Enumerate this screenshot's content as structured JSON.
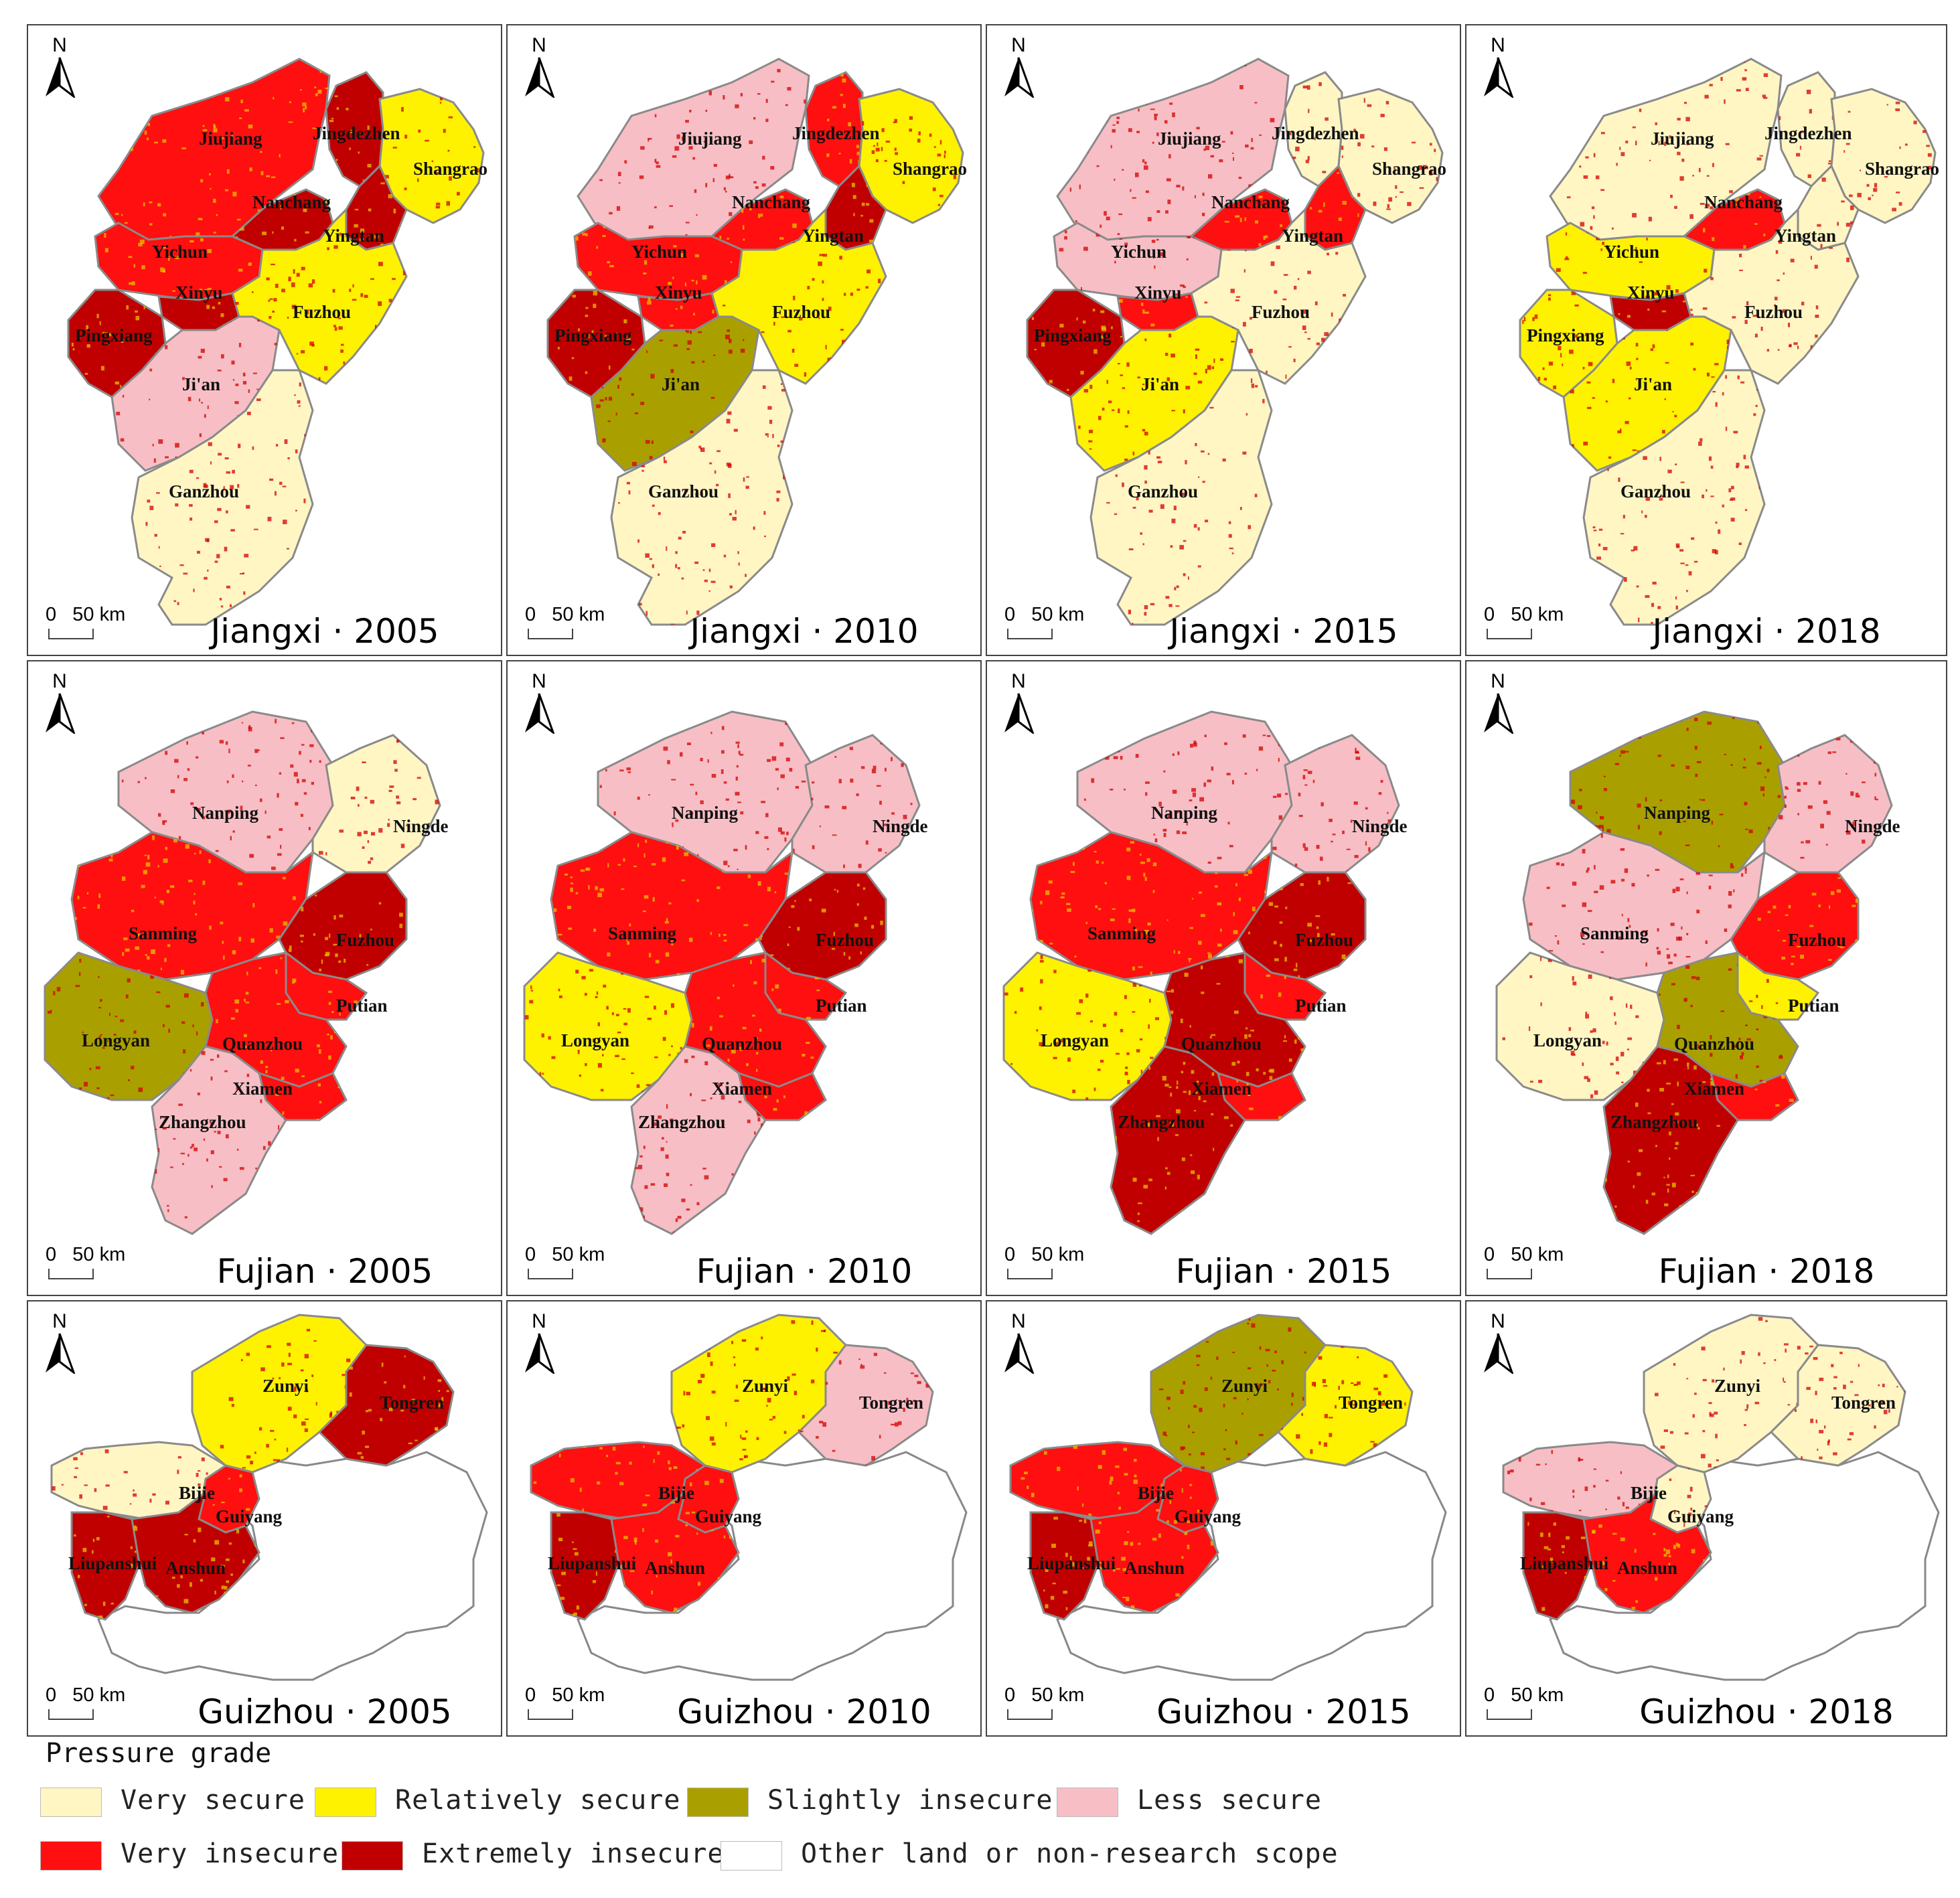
{
  "colors": {
    "very_secure": "#FFF6C4",
    "relatively_secure": "#FFF200",
    "slightly_insecure": "#A9A000",
    "less_secure": "#F7BFC5",
    "very_insecure": "#FF0F0F",
    "extremely_insecure": "#C00000",
    "other": "#FFFFFF"
  },
  "legend": {
    "title": "Pressure grade",
    "items": [
      {
        "key": "very_secure",
        "label": "Very secure"
      },
      {
        "key": "relatively_secure",
        "label": "Relatively secure"
      },
      {
        "key": "slightly_insecure",
        "label": "Slightly insecure"
      },
      {
        "key": "less_secure",
        "label": "Less secure"
      },
      {
        "key": "very_insecure",
        "label": "Very insecure"
      },
      {
        "key": "extremely_insecure",
        "label": "Extremely insecure"
      },
      {
        "key": "other",
        "label": "Other land or non-research scope"
      }
    ]
  },
  "north_label": "N",
  "scale_label": {
    "zero": "0",
    "dist": "50 km"
  },
  "panels": [
    {
      "province": "Jiangxi",
      "year": "2005"
    },
    {
      "province": "Jiangxi",
      "year": "2010"
    },
    {
      "province": "Jiangxi",
      "year": "2015"
    },
    {
      "province": "Jiangxi",
      "year": "2018"
    },
    {
      "province": "Fujian",
      "year": "2005"
    },
    {
      "province": "Fujian",
      "year": "2010"
    },
    {
      "province": "Fujian",
      "year": "2015"
    },
    {
      "province": "Fujian",
      "year": "2018"
    },
    {
      "province": "Guizhou",
      "year": "2005"
    },
    {
      "province": "Guizhou",
      "year": "2010"
    },
    {
      "province": "Guizhou",
      "year": "2015"
    },
    {
      "province": "Guizhou",
      "year": "2018"
    }
  ],
  "provinces": {
    "Jiangxi": {
      "cities": [
        "Jiujiang",
        "Jingdezhen",
        "Shangrao",
        "Nanchang",
        "Yingtan",
        "Yichun",
        "Xinyu",
        "Fuzhou",
        "Pingxiang",
        "Ji'an",
        "Ganzhou"
      ],
      "grades": {
        "2005": [
          "very_insecure",
          "extremely_insecure",
          "relatively_secure",
          "extremely_insecure",
          "extremely_insecure",
          "very_insecure",
          "extremely_insecure",
          "relatively_secure",
          "extremely_insecure",
          "less_secure",
          "very_secure"
        ],
        "2010": [
          "less_secure",
          "very_insecure",
          "relatively_secure",
          "very_insecure",
          "extremely_insecure",
          "very_insecure",
          "very_insecure",
          "relatively_secure",
          "extremely_insecure",
          "slightly_insecure",
          "very_secure"
        ],
        "2015": [
          "less_secure",
          "very_secure",
          "very_secure",
          "very_insecure",
          "very_insecure",
          "less_secure",
          "very_insecure",
          "very_secure",
          "extremely_insecure",
          "relatively_secure",
          "very_secure"
        ],
        "2018": [
          "very_secure",
          "very_secure",
          "very_secure",
          "very_insecure",
          "very_secure",
          "relatively_secure",
          "extremely_insecure",
          "very_secure",
          "relatively_secure",
          "relatively_secure",
          "very_secure"
        ]
      }
    },
    "Fujian": {
      "cities": [
        "Nanping",
        "Ningde",
        "Sanming",
        "Fuzhou",
        "Putian",
        "Longyan",
        "Quanzhou",
        "Xiamen",
        "Zhangzhou"
      ],
      "grades": {
        "2005": [
          "less_secure",
          "very_secure",
          "very_insecure",
          "extremely_insecure",
          "very_insecure",
          "slightly_insecure",
          "very_insecure",
          "very_insecure",
          "less_secure"
        ],
        "2010": [
          "less_secure",
          "less_secure",
          "very_insecure",
          "extremely_insecure",
          "very_insecure",
          "relatively_secure",
          "very_insecure",
          "very_insecure",
          "less_secure"
        ],
        "2015": [
          "less_secure",
          "less_secure",
          "very_insecure",
          "extremely_insecure",
          "very_insecure",
          "relatively_secure",
          "extremely_insecure",
          "very_insecure",
          "extremely_insecure"
        ],
        "2018": [
          "slightly_insecure",
          "less_secure",
          "less_secure",
          "very_insecure",
          "relatively_secure",
          "very_secure",
          "slightly_insecure",
          "very_insecure",
          "extremely_insecure"
        ]
      }
    },
    "Guizhou": {
      "cities": [
        "Zunyi",
        "Tongren",
        "Bijie",
        "Guiyang",
        "Liupanshui",
        "Anshun"
      ],
      "grades": {
        "2005": [
          "relatively_secure",
          "extremely_insecure",
          "very_secure",
          "very_insecure",
          "extremely_insecure",
          "extremely_insecure"
        ],
        "2010": [
          "relatively_secure",
          "less_secure",
          "very_insecure",
          "very_insecure",
          "extremely_insecure",
          "very_insecure"
        ],
        "2015": [
          "slightly_insecure",
          "relatively_secure",
          "very_insecure",
          "very_insecure",
          "extremely_insecure",
          "very_insecure"
        ],
        "2018": [
          "very_secure",
          "very_secure",
          "less_secure",
          "very_secure",
          "extremely_insecure",
          "very_insecure"
        ]
      }
    }
  }
}
